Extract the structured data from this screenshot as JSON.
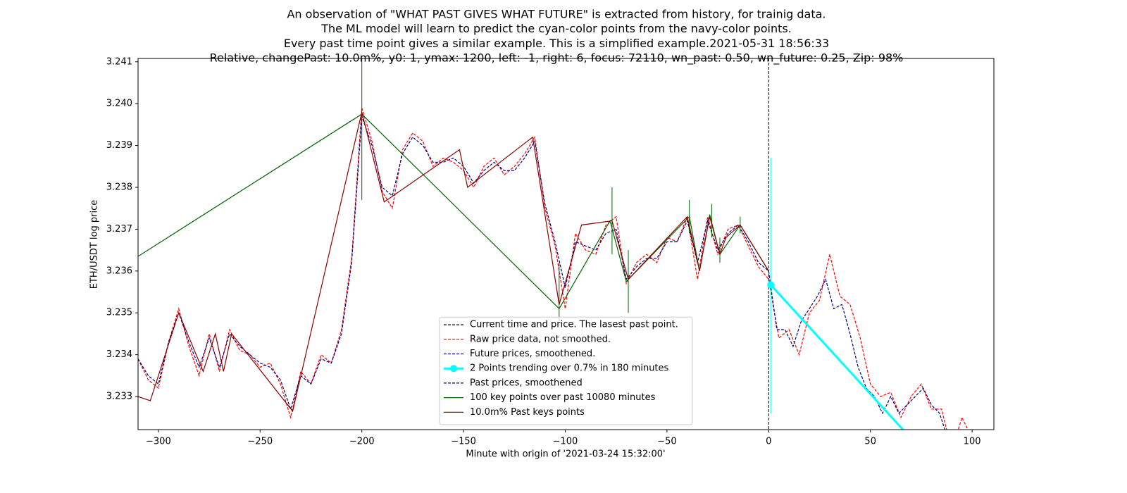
{
  "chart_data": {
    "type": "line",
    "title": [
      "An observation of \"WHAT PAST GIVES WHAT FUTURE\" is extracted from history, for trainig data.",
      "The ML model will learn to predict the cyan-color points from the navy-color points.",
      "Every past time point gives a similar example. This is a simplified example.2021-05-31 18:56:33",
      "Relative, changePast: 10.0m%, y0: 1, ymax: 1200, left: -1, right: 6, focus: 72110, wn_past: 0.50, wn_future: 0.25, Zip: 98%"
    ],
    "xlabel": "Minute with origin of '2021-03-24 15:32:00'",
    "ylabel": "ETH/USDT log price",
    "xlim": [
      -310,
      110.7
    ],
    "ylim": [
      3.23221,
      3.24108
    ],
    "xticks": [
      {
        "value": -300,
        "label": "−300"
      },
      {
        "value": -250,
        "label": "−250"
      },
      {
        "value": -200,
        "label": "−200"
      },
      {
        "value": -150,
        "label": "−150"
      },
      {
        "value": -100,
        "label": "−100"
      },
      {
        "value": -50,
        "label": "−50"
      },
      0,
      50,
      100
    ],
    "yticks": [
      3.233,
      3.234,
      3.235,
      3.236,
      3.237,
      3.238,
      3.239,
      {
        "value": 3.24,
        "label": "3.240"
      },
      3.241
    ],
    "legend": "lower center",
    "series": [
      {
        "name": "Current time and price. The lasest past point.",
        "color": "#000000",
        "linestyle": "dashed",
        "vline": 0
      },
      {
        "name": "Raw price data, not smoothed.",
        "color": "#ff0000",
        "linestyle": "dashed",
        "x": [
          -310,
          -305,
          -300,
          -295,
          -290,
          -285,
          -280,
          -275,
          -270,
          -265,
          -260,
          -255,
          -250,
          -245,
          -240,
          -235,
          -230,
          -225,
          -220,
          -215,
          -210,
          -205,
          -200,
          -195,
          -190,
          -185,
          -180,
          -175,
          -170,
          -165,
          -160,
          -155,
          -150,
          -145,
          -140,
          -135,
          -130,
          -125,
          -120,
          -115,
          -110,
          -105,
          -100,
          -95,
          -90,
          -85,
          -80,
          -75,
          -70,
          -65,
          -60,
          -55,
          -50,
          -45,
          -40,
          -35,
          -30,
          -25,
          -20,
          -15,
          -10,
          -5,
          0,
          5,
          10,
          15,
          20,
          25,
          30,
          35,
          40,
          45,
          50,
          55,
          60,
          65,
          70,
          75,
          80,
          85,
          90,
          95,
          100
        ],
        "values": [
          3.2339,
          3.2334,
          3.2332,
          3.2343,
          3.2351,
          3.2342,
          3.2335,
          3.2345,
          3.2336,
          3.2346,
          3.2341,
          3.234,
          3.2337,
          3.2338,
          3.2333,
          3.2325,
          3.2336,
          3.2333,
          3.234,
          3.2338,
          3.2346,
          3.2363,
          3.2399,
          3.2391,
          3.2379,
          3.2375,
          3.2389,
          3.2393,
          3.2391,
          3.2385,
          3.2387,
          3.2386,
          3.2384,
          3.238,
          3.2385,
          3.2387,
          3.2383,
          3.2385,
          3.2388,
          3.2392,
          3.2375,
          3.2366,
          3.2351,
          3.2369,
          3.2365,
          3.2364,
          3.2371,
          3.2373,
          3.2357,
          3.2362,
          3.2364,
          3.2362,
          3.2368,
          3.2367,
          3.2373,
          3.2358,
          3.2373,
          3.2364,
          3.237,
          3.2371,
          3.2366,
          3.2361,
          3.2358,
          3.2344,
          3.2346,
          3.234,
          3.235,
          3.2353,
          3.2364,
          3.2354,
          3.2352,
          3.2344,
          3.2333,
          3.233,
          3.2331,
          3.2325,
          3.233,
          3.2333,
          3.2327,
          3.2327,
          3.2317,
          3.2325,
          3.232
        ]
      },
      {
        "name": "Future prices, smoothened.",
        "color": "#000080",
        "linestyle": "dashed",
        "x": [
          0,
          4,
          8,
          12,
          16,
          20,
          24,
          28,
          32,
          36,
          40,
          44,
          48,
          52,
          56,
          60,
          64,
          68,
          72,
          76,
          80,
          84,
          88,
          92,
          96,
          100
        ],
        "values": [
          3.236,
          3.2346,
          3.2346,
          3.2342,
          3.2348,
          3.2351,
          3.2354,
          3.2358,
          3.2351,
          3.2352,
          3.2345,
          3.2337,
          3.2332,
          3.233,
          3.2326,
          3.233,
          3.2326,
          3.2328,
          3.233,
          3.2332,
          3.2328,
          3.2326,
          3.232,
          3.2322,
          3.232,
          3.2318
        ]
      },
      {
        "name": "2 Points trending over 0.7% in 180 minutes",
        "color": "#00ffff",
        "linestyle": "solid",
        "marker": "o",
        "width": 3,
        "x": [
          1,
          100
        ],
        "values": [
          3.23567,
          3.2304
        ],
        "ranges": [
          {
            "x": 1,
            "low": 3.2326,
            "high": 3.2387
          }
        ]
      },
      {
        "name": "Past prices, smoothened",
        "color": "#000080",
        "linestyle": "dashed",
        "x": [
          -310,
          -305,
          -300,
          -295,
          -290,
          -285,
          -280,
          -275,
          -270,
          -265,
          -260,
          -255,
          -250,
          -245,
          -240,
          -235,
          -230,
          -225,
          -220,
          -215,
          -210,
          -205,
          -200,
          -195,
          -190,
          -185,
          -180,
          -175,
          -170,
          -165,
          -160,
          -155,
          -150,
          -145,
          -140,
          -135,
          -130,
          -125,
          -120,
          -115,
          -110,
          -105,
          -100,
          -95,
          -90,
          -85,
          -80,
          -75,
          -70,
          -65,
          -60,
          -55,
          -50,
          -45,
          -40,
          -35,
          -30,
          -25,
          -20,
          -15,
          -10,
          -5,
          0
        ],
        "values": [
          3.2339,
          3.2335,
          3.2333,
          3.2343,
          3.235,
          3.2343,
          3.2337,
          3.2344,
          3.2337,
          3.2345,
          3.2342,
          3.234,
          3.2338,
          3.2337,
          3.2334,
          3.2327,
          3.2335,
          3.2333,
          3.2339,
          3.2338,
          3.2345,
          3.2362,
          3.2397,
          3.239,
          3.238,
          3.2378,
          3.2388,
          3.2392,
          3.239,
          3.2386,
          3.2386,
          3.2387,
          3.2385,
          3.2381,
          3.2384,
          3.2386,
          3.2384,
          3.2384,
          3.2387,
          3.2391,
          3.2376,
          3.2367,
          3.2356,
          3.2367,
          3.2366,
          3.2365,
          3.2369,
          3.237,
          3.2358,
          3.2361,
          3.2363,
          3.2363,
          3.2367,
          3.2367,
          3.2372,
          3.2362,
          3.2372,
          3.2365,
          3.2369,
          3.2371,
          3.2367,
          3.2362,
          3.236
        ]
      },
      {
        "name": "100 key points over past 10080 minutes",
        "color": "#006400",
        "linestyle": "solid",
        "x": [
          -310,
          -200,
          -103,
          -78,
          -70,
          -39,
          -34,
          -29,
          -24,
          -14,
          0
        ],
        "values": [
          3.23635,
          3.23975,
          3.2351,
          3.2372,
          3.23575,
          3.2373,
          3.236,
          3.23735,
          3.2364,
          3.2371,
          3.236
        ],
        "ranges": [
          {
            "x": -200,
            "low": 3.2377,
            "high": 3.2411
          },
          {
            "x": -103,
            "low": 3.2348,
            "high": 3.2362
          },
          {
            "x": -77,
            "low": 3.2364,
            "high": 3.238
          },
          {
            "x": -69,
            "low": 3.235,
            "high": 3.2365
          },
          {
            "x": -39,
            "low": 3.2369,
            "high": 3.2377
          },
          {
            "x": -28,
            "low": 3.2368,
            "high": 3.2376
          },
          {
            "x": -24,
            "low": 3.2362,
            "high": 3.2368
          },
          {
            "x": -14,
            "low": 3.2369,
            "high": 3.2373
          }
        ]
      },
      {
        "name": "10.0m% Past keys points",
        "color": "#8b0000",
        "linestyle": "solid",
        "x": [
          -310,
          -304,
          -290,
          -278,
          -272,
          -268,
          -264,
          -234,
          -200,
          -189,
          -152,
          -148,
          -116,
          -103,
          -92,
          -77,
          -69,
          -40,
          -34,
          -29,
          -24,
          -21,
          -14,
          0
        ],
        "values": [
          3.233,
          3.2329,
          3.235,
          3.2336,
          3.2345,
          3.2336,
          3.2345,
          3.23265,
          3.2398,
          3.23765,
          3.2389,
          3.238,
          3.2392,
          3.2352,
          3.2371,
          3.2372,
          3.2358,
          3.2373,
          3.236,
          3.2373,
          3.2364,
          3.2368,
          3.2371,
          3.236
        ]
      }
    ]
  }
}
